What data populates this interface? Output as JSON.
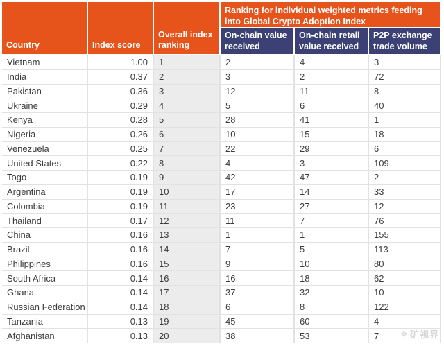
{
  "chart_data": {
    "type": "table",
    "group_header": "Ranking for individual weighted metrics feeding into Global Crypto Adoption Index",
    "columns": [
      "Country",
      "Index score",
      "Overall index ranking",
      "On-chain value received",
      "On-chain retail value received",
      "P2P exchange trade volume"
    ],
    "rows": [
      [
        "Vietnam",
        "1.00",
        "1",
        "2",
        "4",
        "3"
      ],
      [
        "India",
        "0.37",
        "2",
        "3",
        "2",
        "72"
      ],
      [
        "Pakistan",
        "0.36",
        "3",
        "12",
        "11",
        "8"
      ],
      [
        "Ukraine",
        "0.29",
        "4",
        "5",
        "6",
        "40"
      ],
      [
        "Kenya",
        "0.28",
        "5",
        "28",
        "41",
        "1"
      ],
      [
        "Nigeria",
        "0.26",
        "6",
        "10",
        "15",
        "18"
      ],
      [
        "Venezuela",
        "0.25",
        "7",
        "22",
        "29",
        "6"
      ],
      [
        "United States",
        "0.22",
        "8",
        "4",
        "3",
        "109"
      ],
      [
        "Togo",
        "0.19",
        "9",
        "42",
        "47",
        "2"
      ],
      [
        "Argentina",
        "0.19",
        "10",
        "17",
        "14",
        "33"
      ],
      [
        "Colombia",
        "0.19",
        "11",
        "23",
        "27",
        "12"
      ],
      [
        "Thailand",
        "0.17",
        "12",
        "11",
        "7",
        "76"
      ],
      [
        "China",
        "0.16",
        "13",
        "1",
        "1",
        "155"
      ],
      [
        "Brazil",
        "0.16",
        "14",
        "7",
        "5",
        "113"
      ],
      [
        "Philippines",
        "0.16",
        "15",
        "9",
        "10",
        "80"
      ],
      [
        "South Africa",
        "0.14",
        "16",
        "16",
        "18",
        "62"
      ],
      [
        "Ghana",
        "0.14",
        "17",
        "37",
        "32",
        "10"
      ],
      [
        "Russian Federation",
        "0.14",
        "18",
        "6",
        "8",
        "122"
      ],
      [
        "Tanzania",
        "0.13",
        "19",
        "45",
        "60",
        "4"
      ],
      [
        "Afghanistan",
        "0.13",
        "20",
        "38",
        "53",
        "7"
      ]
    ],
    "layout": {
      "rank_column_shaded": true,
      "score_column_align": "right"
    }
  },
  "watermark": {
    "logo_glyph": "❖",
    "text": "矿视界"
  },
  "colors": {
    "header_orange": "#E6541C",
    "subheader_navy": "#3B4174",
    "rank_column_gray": "#ECECEC",
    "grid_line": "#E2E2E2",
    "body_text": "#3C3C3C"
  }
}
